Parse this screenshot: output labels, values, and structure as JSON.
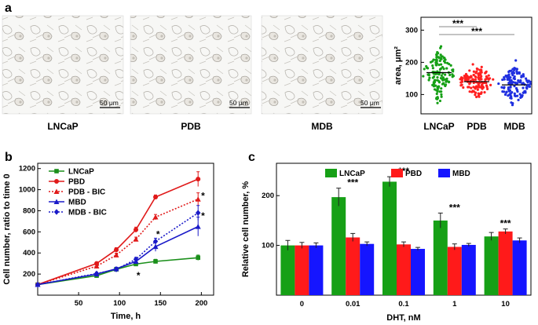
{
  "panels": {
    "a": {
      "label": "a",
      "micrographs": [
        {
          "name": "LNCaP",
          "caption": "LNCaP",
          "scale": "50 μm"
        },
        {
          "name": "PDB",
          "caption": "PDB",
          "scale": "50 μm"
        },
        {
          "name": "MDB",
          "caption": "MDB",
          "scale": "50 μm"
        }
      ]
    },
    "b": {
      "label": "b"
    },
    "c": {
      "label": "c"
    }
  },
  "chart_data": [
    {
      "id": "area-scatter",
      "type": "scatter",
      "ylabel": "area, μm²",
      "yticks": [
        100,
        200,
        300
      ],
      "ylim": [
        40,
        340
      ],
      "categories": [
        "LNCaP",
        "PDB",
        "MDB"
      ],
      "colors": [
        "#16a016",
        "#ff2020",
        "#1f2fe0"
      ],
      "means": [
        168,
        140,
        130
      ],
      "spreads": [
        {
          "min": 70,
          "max": 300,
          "width": 1.0
        },
        {
          "min": 80,
          "max": 220,
          "width": 1.0
        },
        {
          "min": 60,
          "max": 235,
          "width": 1.0
        }
      ],
      "significance": [
        {
          "from": "LNCaP",
          "to": "PDB",
          "label": "***"
        },
        {
          "from": "LNCaP",
          "to": "MDB",
          "label": "***"
        }
      ]
    },
    {
      "id": "growth-curves",
      "type": "line",
      "xlabel": "Time, h",
      "ylabel": "Cell number, ratio to time 0",
      "xlim": [
        0,
        215
      ],
      "ylim": [
        0,
        1250
      ],
      "xticks": [
        50,
        100,
        150,
        200
      ],
      "yticks": [
        200,
        400,
        600,
        800,
        1000,
        1200
      ],
      "series": [
        {
          "name": "LNCaP",
          "color": "#1a8f1a",
          "dashed": false,
          "marker": "square",
          "x": [
            0,
            72,
            96,
            120,
            144,
            196
          ],
          "y": [
            100,
            185,
            245,
            295,
            320,
            355
          ],
          "err": [
            0,
            12,
            12,
            15,
            20,
            25
          ]
        },
        {
          "name": "PBD",
          "color": "#e01a1a",
          "dashed": false,
          "marker": "circle",
          "x": [
            0,
            72,
            96,
            120,
            144,
            196
          ],
          "y": [
            100,
            300,
            430,
            620,
            930,
            1100
          ],
          "err": [
            0,
            15,
            20,
            25,
            20,
            70
          ]
        },
        {
          "name": "PDB - BIC",
          "color": "#e01a1a",
          "dashed": true,
          "marker": "triangle",
          "x": [
            0,
            72,
            96,
            120,
            144,
            196
          ],
          "y": [
            100,
            275,
            380,
            530,
            740,
            910
          ],
          "err": [
            0,
            15,
            18,
            20,
            25,
            60
          ]
        },
        {
          "name": "MBD",
          "color": "#1a1ac8",
          "dashed": false,
          "marker": "triangle",
          "x": [
            0,
            72,
            96,
            120,
            144,
            196
          ],
          "y": [
            100,
            200,
            250,
            320,
            460,
            650
          ],
          "err": [
            0,
            12,
            15,
            20,
            45,
            90
          ]
        },
        {
          "name": "MDB - BIC",
          "color": "#1a1ac8",
          "dashed": true,
          "marker": "diamond",
          "x": [
            0,
            72,
            96,
            120,
            144,
            196
          ],
          "y": [
            100,
            205,
            245,
            340,
            510,
            780
          ],
          "err": [
            0,
            12,
            15,
            18,
            30,
            70
          ]
        }
      ],
      "annotations": [
        {
          "text": "*",
          "x": 123,
          "y": 185
        },
        {
          "text": "*",
          "x": 147,
          "y": 575
        },
        {
          "text": "*",
          "x": 202,
          "y": 940
        },
        {
          "text": "*",
          "x": 202,
          "y": 750
        }
      ]
    },
    {
      "id": "dht-response",
      "type": "bar",
      "xlabel": "DHT, nM",
      "ylabel": "Relative cell number, %",
      "ylim": [
        0,
        265
      ],
      "yticks": [
        100,
        200
      ],
      "categories": [
        "0",
        "0.01",
        "0.1",
        "1",
        "10"
      ],
      "series": [
        {
          "name": "LNCaP",
          "color": "#16a016",
          "values": [
            100,
            197,
            228,
            150,
            118
          ],
          "err": [
            10,
            18,
            10,
            15,
            8
          ]
        },
        {
          "name": "PBD",
          "color": "#ff1a1a",
          "values": [
            100,
            116,
            102,
            97,
            128
          ],
          "err": [
            6,
            8,
            5,
            6,
            5
          ]
        },
        {
          "name": "MBD",
          "color": "#1515ff",
          "values": [
            100,
            103,
            93,
            101,
            110
          ],
          "err": [
            5,
            4,
            3,
            3,
            5
          ]
        }
      ],
      "significance": [
        {
          "category": "0.01",
          "label": "***"
        },
        {
          "category": "0.1",
          "label": "***"
        },
        {
          "category": "1",
          "label": "***"
        },
        {
          "category": "10",
          "label": "***"
        }
      ]
    }
  ]
}
